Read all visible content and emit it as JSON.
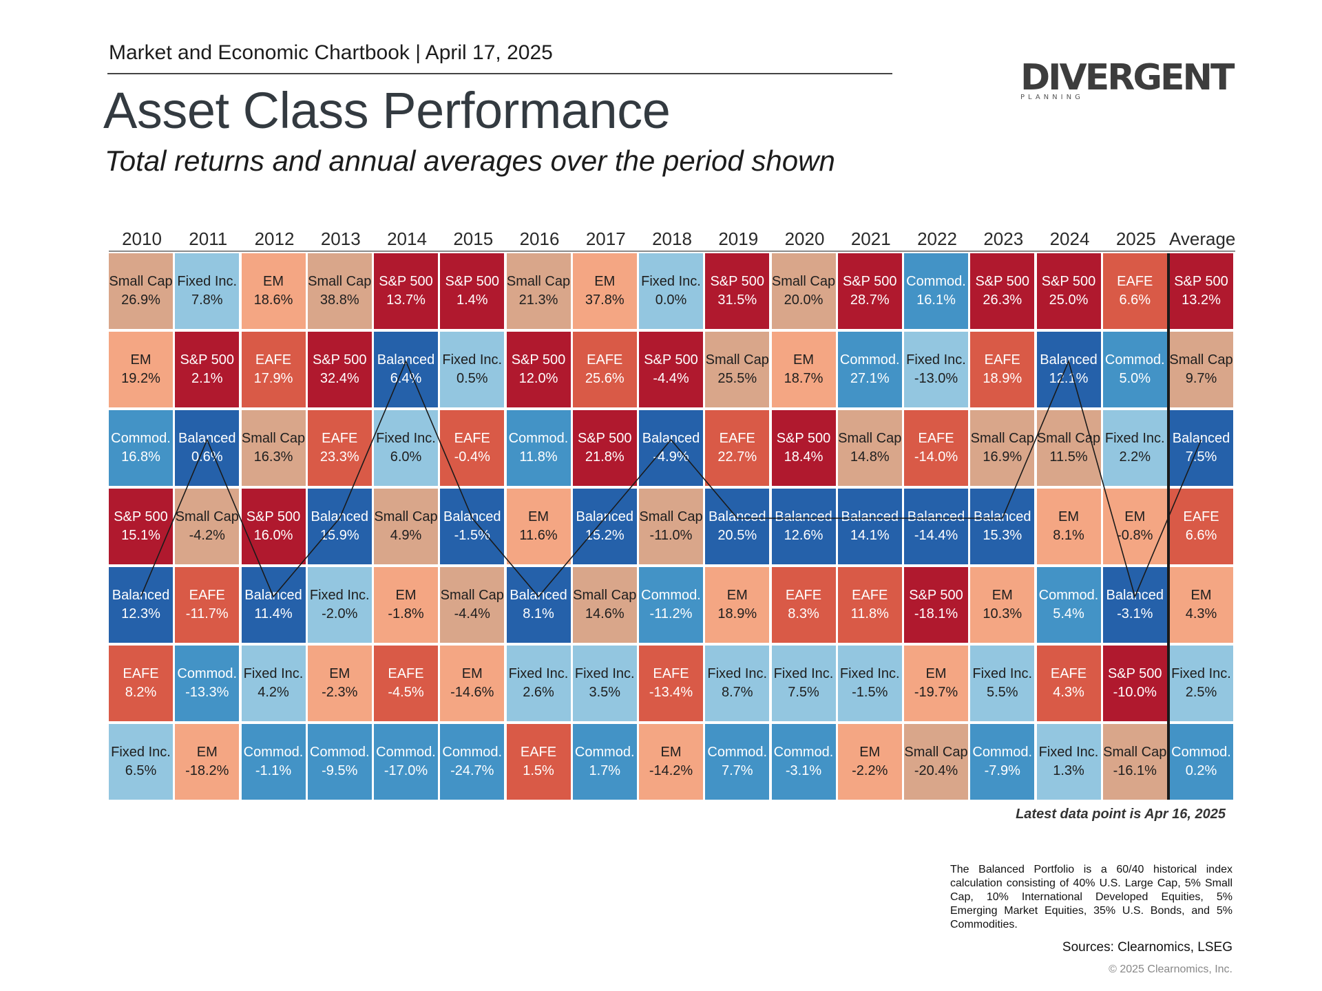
{
  "header": {
    "kicker": "Market and Economic Chartbook | April 17, 2025",
    "title": "Asset Class Performance",
    "subtitle": "Total returns and annual averages over the period shown"
  },
  "logo": {
    "word": "DIVERGENT",
    "sub": "PLANNING"
  },
  "colors": {
    "S&P 500": "#b0192e",
    "Small Cap": "#d9a68a",
    "EM": "#f4a683",
    "EAFE": "#d95a47",
    "Balanced": "#2561aa",
    "Commod.": "#4393c6",
    "Fixed Inc.": "#93c6e0"
  },
  "chart_data": {
    "type": "table",
    "columns": [
      "2010",
      "2011",
      "2012",
      "2013",
      "2014",
      "2015",
      "2016",
      "2017",
      "2018",
      "2019",
      "2020",
      "2021",
      "2022",
      "2023",
      "2024",
      "2025",
      "Average"
    ],
    "grid": [
      [
        [
          "Small Cap",
          "26.9%"
        ],
        [
          "Fixed Inc.",
          "7.8%"
        ],
        [
          "EM",
          "18.6%"
        ],
        [
          "Small Cap",
          "38.8%"
        ],
        [
          "S&P 500",
          "13.7%"
        ],
        [
          "S&P 500",
          "1.4%"
        ],
        [
          "Small Cap",
          "21.3%"
        ],
        [
          "EM",
          "37.8%"
        ],
        [
          "Fixed Inc.",
          "0.0%"
        ],
        [
          "S&P 500",
          "31.5%"
        ],
        [
          "Small Cap",
          "20.0%"
        ],
        [
          "S&P 500",
          "28.7%"
        ],
        [
          "Commod.",
          "16.1%"
        ],
        [
          "S&P 500",
          "26.3%"
        ],
        [
          "S&P 500",
          "25.0%"
        ],
        [
          "EAFE",
          "6.6%"
        ],
        [
          "S&P 500",
          "13.2%"
        ]
      ],
      [
        [
          "EM",
          "19.2%"
        ],
        [
          "S&P 500",
          "2.1%"
        ],
        [
          "EAFE",
          "17.9%"
        ],
        [
          "S&P 500",
          "32.4%"
        ],
        [
          "Balanced",
          "6.4%"
        ],
        [
          "Fixed Inc.",
          "0.5%"
        ],
        [
          "S&P 500",
          "12.0%"
        ],
        [
          "EAFE",
          "25.6%"
        ],
        [
          "S&P 500",
          "-4.4%"
        ],
        [
          "Small Cap",
          "25.5%"
        ],
        [
          "EM",
          "18.7%"
        ],
        [
          "Commod.",
          "27.1%"
        ],
        [
          "Fixed Inc.",
          "-13.0%"
        ],
        [
          "EAFE",
          "18.9%"
        ],
        [
          "Balanced",
          "12.1%"
        ],
        [
          "Commod.",
          "5.0%"
        ],
        [
          "Small Cap",
          "9.7%"
        ]
      ],
      [
        [
          "Commod.",
          "16.8%"
        ],
        [
          "Balanced",
          "0.6%"
        ],
        [
          "Small Cap",
          "16.3%"
        ],
        [
          "EAFE",
          "23.3%"
        ],
        [
          "Fixed Inc.",
          "6.0%"
        ],
        [
          "EAFE",
          "-0.4%"
        ],
        [
          "Commod.",
          "11.8%"
        ],
        [
          "S&P 500",
          "21.8%"
        ],
        [
          "Balanced",
          "-4.9%"
        ],
        [
          "EAFE",
          "22.7%"
        ],
        [
          "S&P 500",
          "18.4%"
        ],
        [
          "Small Cap",
          "14.8%"
        ],
        [
          "EAFE",
          "-14.0%"
        ],
        [
          "Small Cap",
          "16.9%"
        ],
        [
          "Small Cap",
          "11.5%"
        ],
        [
          "Fixed Inc.",
          "2.2%"
        ],
        [
          "Balanced",
          "7.5%"
        ]
      ],
      [
        [
          "S&P 500",
          "15.1%"
        ],
        [
          "Small Cap",
          "-4.2%"
        ],
        [
          "S&P 500",
          "16.0%"
        ],
        [
          "Balanced",
          "15.9%"
        ],
        [
          "Small Cap",
          "4.9%"
        ],
        [
          "Balanced",
          "-1.5%"
        ],
        [
          "EM",
          "11.6%"
        ],
        [
          "Balanced",
          "15.2%"
        ],
        [
          "Small Cap",
          "-11.0%"
        ],
        [
          "Balanced",
          "20.5%"
        ],
        [
          "Balanced",
          "12.6%"
        ],
        [
          "Balanced",
          "14.1%"
        ],
        [
          "Balanced",
          "-14.4%"
        ],
        [
          "Balanced",
          "15.3%"
        ],
        [
          "EM",
          "8.1%"
        ],
        [
          "EM",
          "-0.8%"
        ],
        [
          "EAFE",
          "6.6%"
        ]
      ],
      [
        [
          "Balanced",
          "12.3%"
        ],
        [
          "EAFE",
          "-11.7%"
        ],
        [
          "Balanced",
          "11.4%"
        ],
        [
          "Fixed Inc.",
          "-2.0%"
        ],
        [
          "EM",
          "-1.8%"
        ],
        [
          "Small Cap",
          "-4.4%"
        ],
        [
          "Balanced",
          "8.1%"
        ],
        [
          "Small Cap",
          "14.6%"
        ],
        [
          "Commod.",
          "-11.2%"
        ],
        [
          "EM",
          "18.9%"
        ],
        [
          "EAFE",
          "8.3%"
        ],
        [
          "EAFE",
          "11.8%"
        ],
        [
          "S&P 500",
          "-18.1%"
        ],
        [
          "EM",
          "10.3%"
        ],
        [
          "Commod.",
          "5.4%"
        ],
        [
          "Balanced",
          "-3.1%"
        ],
        [
          "EM",
          "4.3%"
        ]
      ],
      [
        [
          "EAFE",
          "8.2%"
        ],
        [
          "Commod.",
          "-13.3%"
        ],
        [
          "Fixed Inc.",
          "4.2%"
        ],
        [
          "EM",
          "-2.3%"
        ],
        [
          "EAFE",
          "-4.5%"
        ],
        [
          "EM",
          "-14.6%"
        ],
        [
          "Fixed Inc.",
          "2.6%"
        ],
        [
          "Fixed Inc.",
          "3.5%"
        ],
        [
          "EAFE",
          "-13.4%"
        ],
        [
          "Fixed Inc.",
          "8.7%"
        ],
        [
          "Fixed Inc.",
          "7.5%"
        ],
        [
          "Fixed Inc.",
          "-1.5%"
        ],
        [
          "EM",
          "-19.7%"
        ],
        [
          "Fixed Inc.",
          "5.5%"
        ],
        [
          "EAFE",
          "4.3%"
        ],
        [
          "S&P 500",
          "-10.0%"
        ],
        [
          "Fixed Inc.",
          "2.5%"
        ]
      ],
      [
        [
          "Fixed Inc.",
          "6.5%"
        ],
        [
          "EM",
          "-18.2%"
        ],
        [
          "Commod.",
          "-1.1%"
        ],
        [
          "Commod.",
          "-9.5%"
        ],
        [
          "Commod.",
          "-17.0%"
        ],
        [
          "Commod.",
          "-24.7%"
        ],
        [
          "EAFE",
          "1.5%"
        ],
        [
          "Commod.",
          "1.7%"
        ],
        [
          "EM",
          "-14.2%"
        ],
        [
          "Commod.",
          "7.7%"
        ],
        [
          "Commod.",
          "-3.1%"
        ],
        [
          "EM",
          "-2.2%"
        ],
        [
          "Small Cap",
          "-20.4%"
        ],
        [
          "Commod.",
          "-7.9%"
        ],
        [
          "Fixed Inc.",
          "1.3%"
        ],
        [
          "Small Cap",
          "-16.1%"
        ],
        [
          "Commod.",
          "0.2%"
        ]
      ]
    ],
    "balanced_rank_by_column": [
      5,
      3,
      5,
      4,
      2,
      4,
      5,
      4,
      3,
      4,
      4,
      4,
      4,
      4,
      2,
      5,
      3
    ]
  },
  "notes": {
    "latest": "Latest data point is Apr 16, 2025",
    "footnote": "The Balanced Portfolio is a 60/40 historical index calculation consisting of 40% U.S. Large Cap, 5% Small Cap, 10% International Developed Equities, 5% Emerging Market Equities, 35% U.S. Bonds, and 5% Commodities.",
    "sources": "Sources: Clearnomics, LSEG",
    "copyright": "© 2025 Clearnomics, Inc."
  }
}
